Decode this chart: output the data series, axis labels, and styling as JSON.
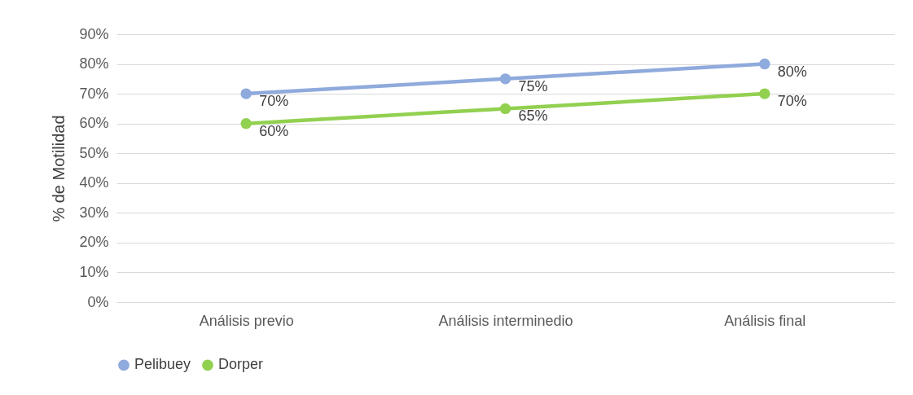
{
  "chart_data": {
    "type": "line",
    "ylabel": "% de Motilidad",
    "categories": [
      "Análisis previo",
      "Análisis interminedio",
      "Análisis final"
    ],
    "series": [
      {
        "name": "Pelibuey",
        "color": "#8faadc",
        "values": [
          70,
          75,
          80
        ],
        "value_labels": [
          "70%",
          "75%",
          "80%"
        ]
      },
      {
        "name": "Dorper",
        "color": "#92d050",
        "values": [
          60,
          65,
          70
        ],
        "value_labels": [
          "60%",
          "65%",
          "70%"
        ]
      }
    ],
    "ylim": [
      0,
      90
    ],
    "yticks": [
      {
        "value": 0,
        "label": "0%"
      },
      {
        "value": 10,
        "label": "10%"
      },
      {
        "value": 20,
        "label": "20%"
      },
      {
        "value": 30,
        "label": "30%"
      },
      {
        "value": 40,
        "label": "40%"
      },
      {
        "value": 50,
        "label": "50%"
      },
      {
        "value": 60,
        "label": "60%"
      },
      {
        "value": 70,
        "label": "70%"
      },
      {
        "value": 80,
        "label": "80%"
      },
      {
        "value": 90,
        "label": "90%"
      }
    ],
    "grid": "y",
    "legend": "bottom",
    "marker": "circle",
    "line_style": "solid"
  }
}
